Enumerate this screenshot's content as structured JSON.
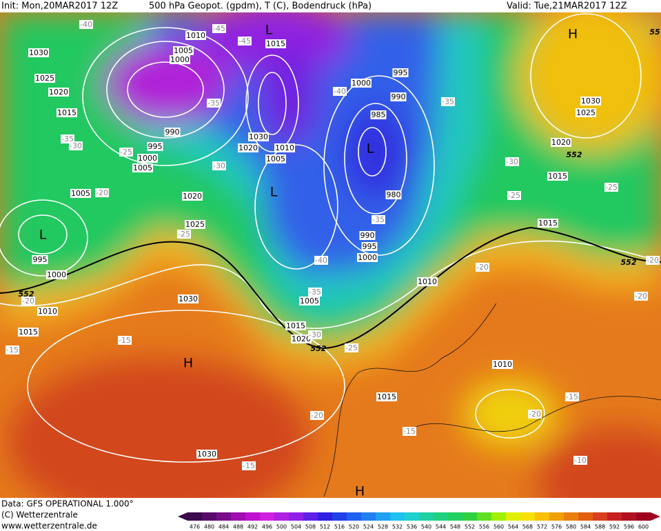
{
  "header": {
    "init": "Init: Mon,20MAR2017 12Z",
    "title": "500 hPa Geopot. (gpdm), T (C), Bodendruck (hPa)",
    "valid": "Valid: Tue,21MAR2017 12Z"
  },
  "footer": {
    "source": "Data: GFS OPERATIONAL 1.000°",
    "copyright": "(C) Wetterzentrale",
    "url": "www.wetterzentrale.de"
  },
  "legend": {
    "values": [
      476,
      480,
      484,
      488,
      492,
      496,
      500,
      504,
      508,
      512,
      516,
      520,
      524,
      528,
      532,
      536,
      540,
      544,
      548,
      552,
      556,
      560,
      564,
      568,
      572,
      576,
      580,
      584,
      588,
      592,
      596,
      600
    ],
    "colors": [
      "#3a0a4a",
      "#5a0a6a",
      "#7a0a8a",
      "#a010b0",
      "#c010d0",
      "#d020e0",
      "#b020e0",
      "#9020e8",
      "#6020e8",
      "#3020e0",
      "#2040e8",
      "#2060f0",
      "#2080f0",
      "#20a0f0",
      "#20c0f0",
      "#20d0d0",
      "#20d0a0",
      "#20d080",
      "#20d060",
      "#30d040",
      "#60e020",
      "#a0f000",
      "#e0f000",
      "#f8e000",
      "#f8c000",
      "#f0a000",
      "#e88010",
      "#e06010",
      "#d84020",
      "#c82020",
      "#b01020",
      "#a00020"
    ]
  },
  "map": {
    "pressure_labels": [
      "1010",
      "1005",
      "1000",
      "1015",
      "1030",
      "1025",
      "1020",
      "1015",
      "990",
      "995",
      "1000",
      "1005",
      "1030",
      "1020",
      "1010",
      "1005",
      "1000",
      "995",
      "990",
      "985",
      "980",
      "990",
      "995",
      "1000",
      "1010",
      "1005",
      "1020",
      "1025",
      "995",
      "1000",
      "1010",
      "1015",
      "1030",
      "1005",
      "1015",
      "1020",
      "1010",
      "1015",
      "1030",
      "1030",
      "1025",
      "1020",
      "1015",
      "1015"
    ],
    "temperature_labels": [
      "-40",
      "-45",
      "-45",
      "-35",
      "-40",
      "-35",
      "-35",
      "-30",
      "-25",
      "-30",
      "-20",
      "-25",
      "-40",
      "-35",
      "-35",
      "-30",
      "-25",
      "-20",
      "-25",
      "-30",
      "-25",
      "-20",
      "-20",
      "-20",
      "-15",
      "-15",
      "-20",
      "-15",
      "-20",
      "-15",
      "-15",
      "-10"
    ],
    "centers": [
      "H",
      "L",
      "L",
      "L",
      "L",
      "H",
      "H"
    ],
    "contour_labels": [
      "552",
      "552",
      "552",
      "552",
      "55"
    ]
  }
}
